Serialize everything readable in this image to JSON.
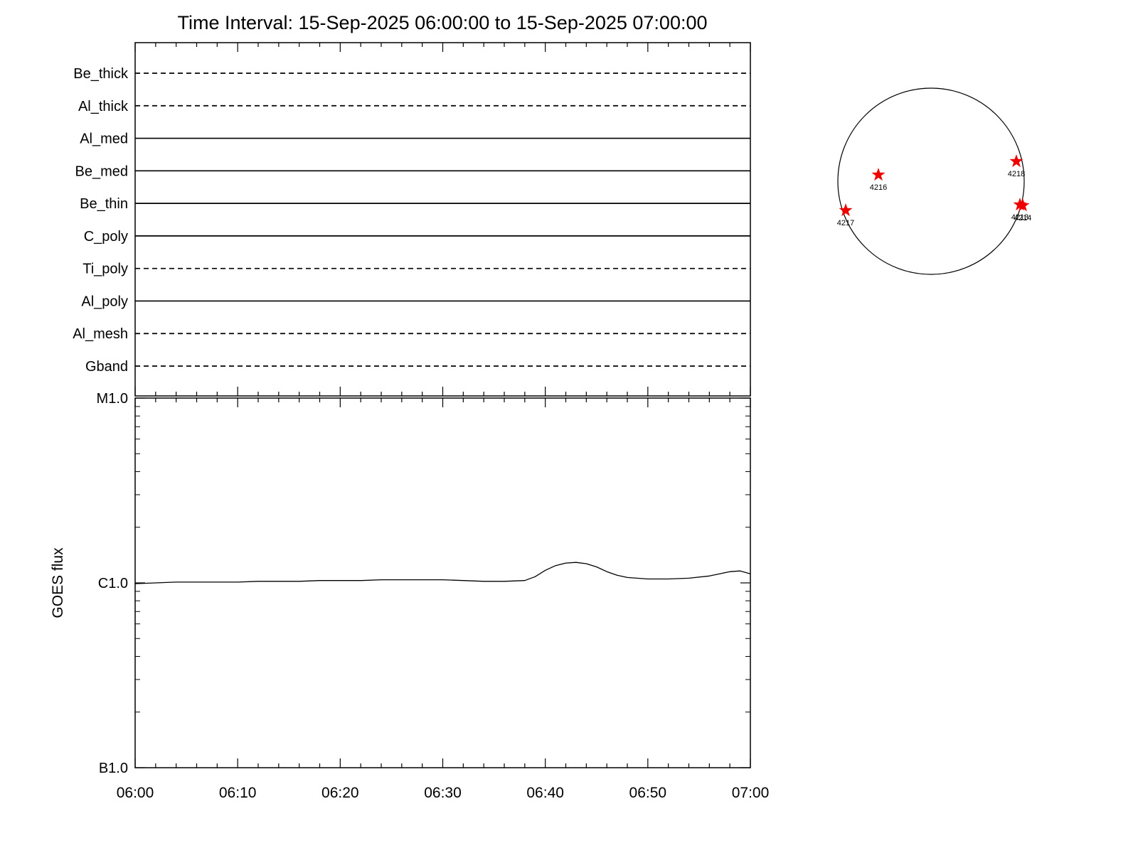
{
  "title": "Time Interval: 15-Sep-2025 06:00:00 to 15-Sep-2025 07:00:00",
  "colors": {
    "foreground": "#000000",
    "background": "#ffffff",
    "active_region_star": "#ee0000"
  },
  "chart_data": [
    {
      "type": "timeline",
      "panel": "xrt-filter-timeline",
      "x_range": [
        "06:00",
        "07:00"
      ],
      "x_major_tick_minutes": 10,
      "x_minor_tick_minutes": 2,
      "rows": [
        {
          "label": "Be_thick",
          "line_style": "dashed"
        },
        {
          "label": "Al_thick",
          "line_style": "dashed"
        },
        {
          "label": "Al_med",
          "line_style": "solid"
        },
        {
          "label": "Be_med",
          "line_style": "solid"
        },
        {
          "label": "Be_thin",
          "line_style": "solid"
        },
        {
          "label": "C_poly",
          "line_style": "solid"
        },
        {
          "label": "Ti_poly",
          "line_style": "dashed"
        },
        {
          "label": "Al_poly",
          "line_style": "solid"
        },
        {
          "label": "Al_mesh",
          "line_style": "dashed"
        },
        {
          "label": "Gband",
          "line_style": "dashed"
        }
      ]
    },
    {
      "type": "line",
      "panel": "goes-flux",
      "ylabel": "GOES flux",
      "y_scale": "log",
      "y_tick_labels": [
        "M1.0",
        "C1.0",
        "B1.0"
      ],
      "y_units": "C1.0 = 1e-6 W/m^2, axis spans B1.0 to M1.0",
      "x_tick_labels": [
        "06:00",
        "06:10",
        "06:20",
        "06:30",
        "06:40",
        "06:50",
        "07:00"
      ],
      "x_major_tick_minutes": 10,
      "x_minor_tick_minutes": 2,
      "x_minutes": [
        0,
        2,
        4,
        6,
        8,
        10,
        12,
        14,
        16,
        18,
        20,
        22,
        24,
        26,
        28,
        30,
        32,
        34,
        36,
        38,
        39,
        40,
        41,
        42,
        43,
        44,
        45,
        46,
        47,
        48,
        50,
        52,
        54,
        56,
        57,
        58,
        59,
        60
      ],
      "y_flux_c_units": [
        0.99,
        1.0,
        1.01,
        1.01,
        1.01,
        1.01,
        1.02,
        1.02,
        1.02,
        1.03,
        1.03,
        1.03,
        1.04,
        1.04,
        1.04,
        1.04,
        1.03,
        1.02,
        1.02,
        1.03,
        1.08,
        1.17,
        1.24,
        1.28,
        1.29,
        1.27,
        1.22,
        1.15,
        1.1,
        1.07,
        1.05,
        1.05,
        1.06,
        1.09,
        1.12,
        1.15,
        1.16,
        1.12
      ]
    },
    {
      "type": "scatter",
      "panel": "solar-disk",
      "marker": "star",
      "active_regions": [
        {
          "label": "4218",
          "x_disk": 0.916,
          "y_disk": -0.214
        },
        {
          "label": "4216",
          "x_disk": -0.565,
          "y_disk": -0.069
        },
        {
          "label": "4217",
          "x_disk": -0.916,
          "y_disk": 0.313
        },
        {
          "label": "4213",
          "x_disk": 0.954,
          "y_disk": 0.252
        },
        {
          "label": "4214",
          "x_disk": 0.985,
          "y_disk": 0.26
        }
      ]
    }
  ]
}
